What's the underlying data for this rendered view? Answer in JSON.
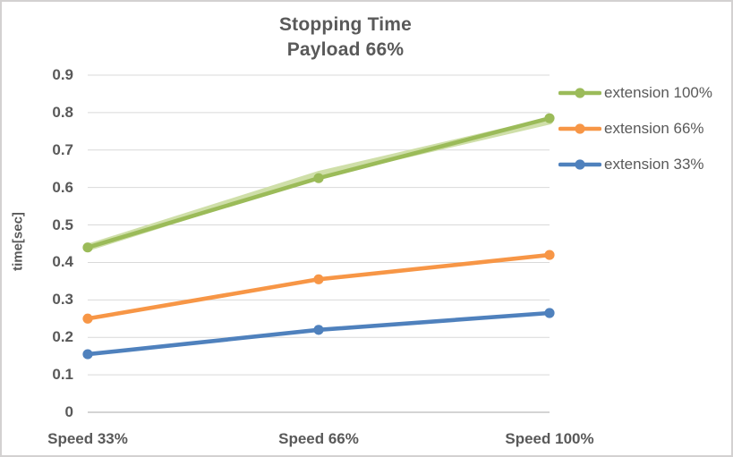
{
  "chart_data": {
    "type": "line",
    "title": "Stopping Time",
    "subtitle": "Payload 66%",
    "ylabel": "time[sec]",
    "categories": [
      "Speed 33%",
      "Speed 66%",
      "Speed 100%"
    ],
    "series": [
      {
        "name": "extension 100%",
        "color": "#9BBB59",
        "glow": true,
        "values": [
          0.44,
          0.625,
          0.785
        ]
      },
      {
        "name": "extension 66%",
        "color": "#F79646",
        "glow": false,
        "values": [
          0.25,
          0.355,
          0.42
        ]
      },
      {
        "name": "extension 33%",
        "color": "#4F81BD",
        "glow": false,
        "values": [
          0.155,
          0.22,
          0.265
        ]
      }
    ],
    "ylim": [
      0,
      0.9
    ],
    "ytick_step": 0.1,
    "yticks": [
      "0",
      "0.1",
      "0.2",
      "0.3",
      "0.4",
      "0.5",
      "0.6",
      "0.7",
      "0.8",
      "0.9"
    ],
    "grid": true,
    "legend_position": "right"
  },
  "colors": {
    "text": "#595959",
    "grid": "#D9D9D9",
    "axis": "#C6C6C6",
    "border": "#D3D1D1",
    "glow": "#CFDFA9"
  }
}
